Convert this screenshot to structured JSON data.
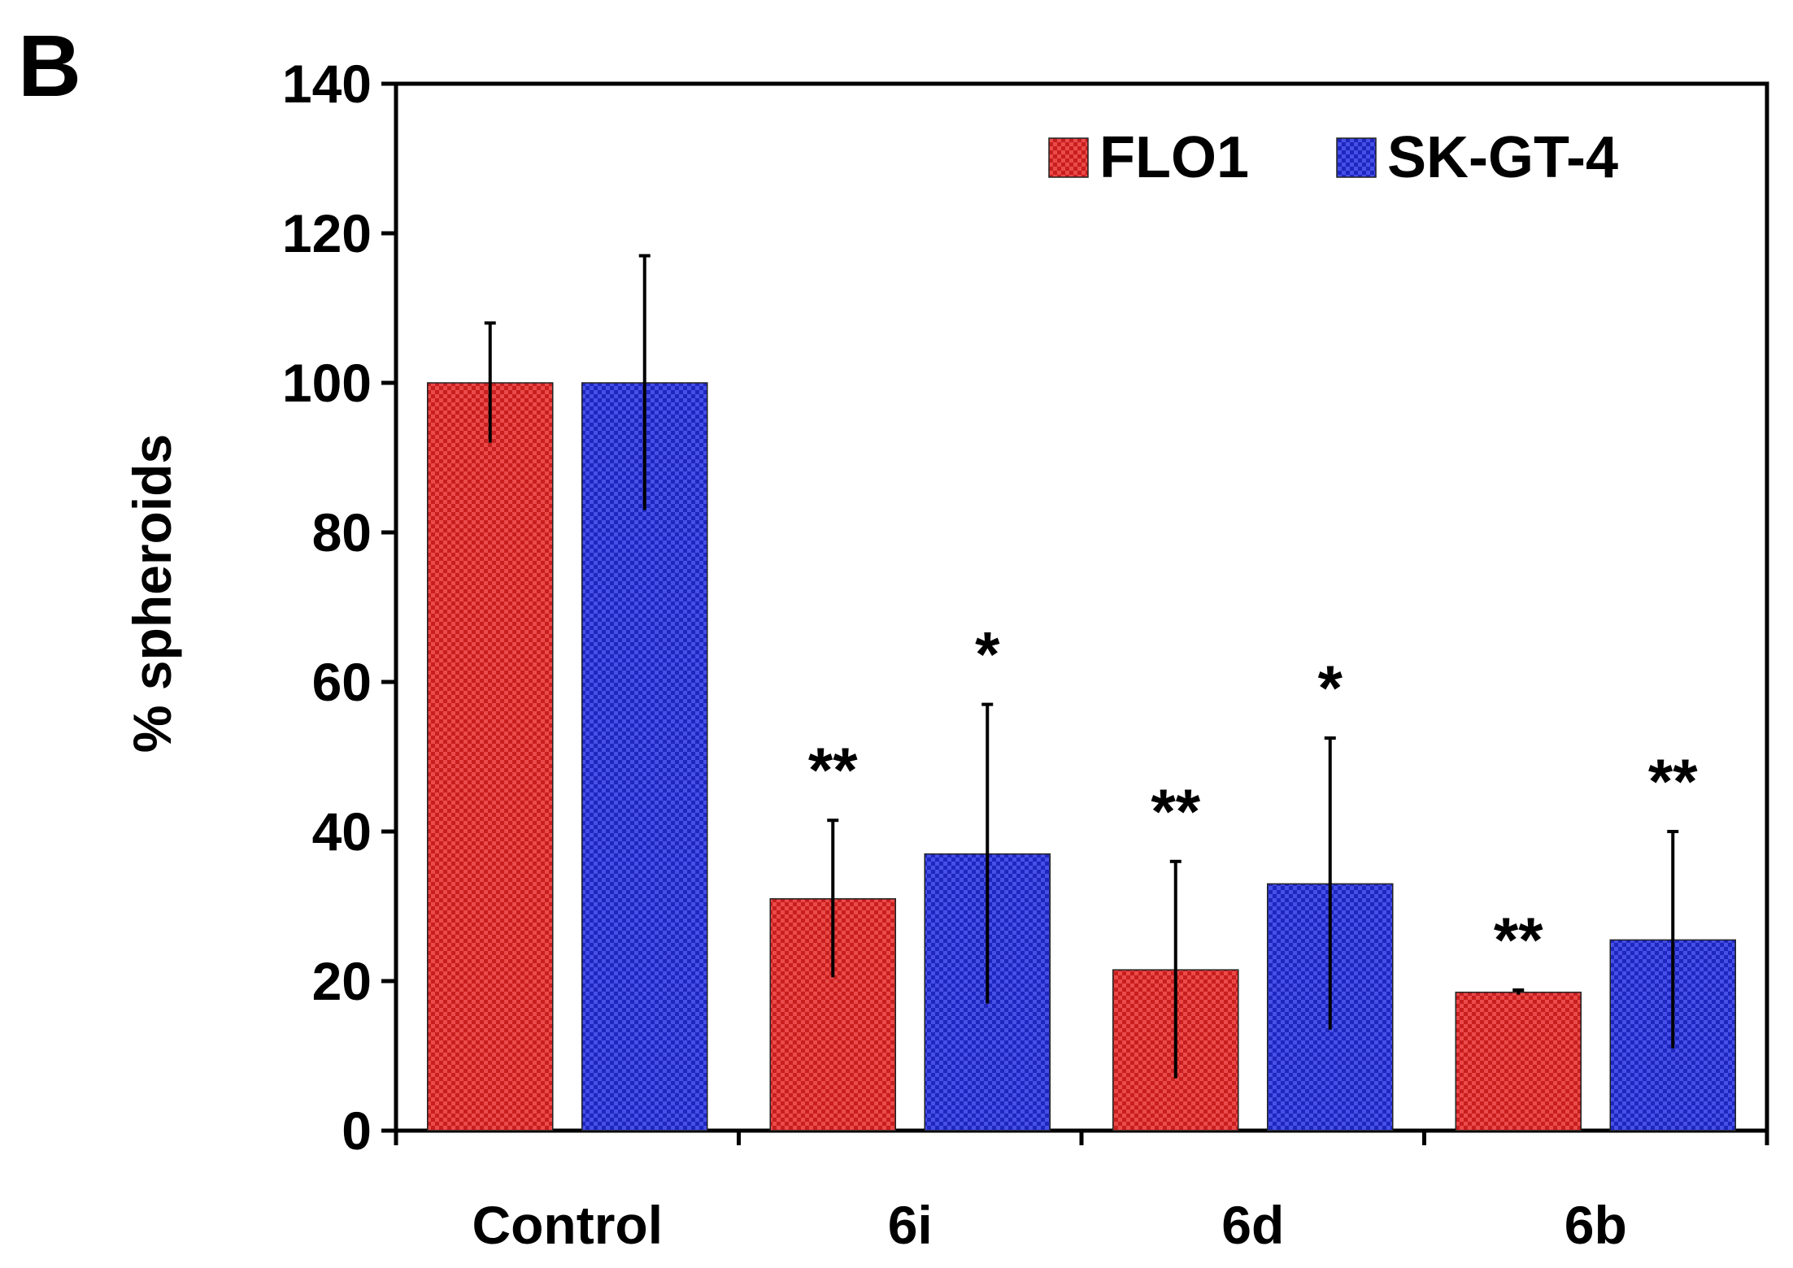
{
  "panel_label": "B",
  "chart_data": {
    "type": "bar",
    "title": "",
    "xlabel": "",
    "ylabel": "% spheroids",
    "ylim": [
      0,
      140
    ],
    "yticks": [
      0,
      20,
      40,
      60,
      80,
      100,
      120,
      140
    ],
    "categories": [
      "Control",
      "6i",
      "6d",
      "6b"
    ],
    "series": [
      {
        "name": "FLO1",
        "color": "#d42a2a",
        "values": [
          100,
          31,
          21.5,
          18.5
        ],
        "errors": [
          8,
          10.5,
          14.5,
          0.3
        ],
        "significance": [
          "",
          "**",
          "**",
          "**"
        ]
      },
      {
        "name": "SK-GT-4",
        "color": "#2a32d0",
        "values": [
          100,
          37,
          33,
          25.5
        ],
        "errors": [
          17,
          20,
          19.5,
          14.5
        ],
        "significance": [
          "",
          "*",
          "*",
          "**"
        ]
      }
    ],
    "legend": "top-right",
    "grid": false
  }
}
